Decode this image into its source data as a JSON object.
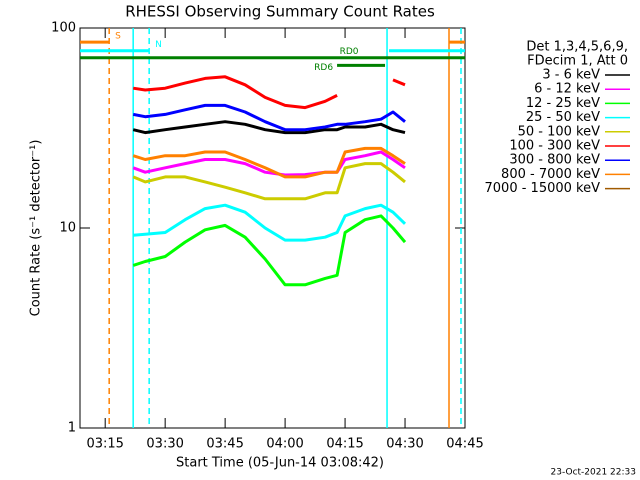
{
  "chart_data": {
    "type": "line",
    "title": "RHESSI Observing Summary Count Rates",
    "xlabel": "Start Time (05-Jun-14 03:08:42)",
    "ylabel": "Count Rate (s⁻¹ detector⁻¹)",
    "legend_header": [
      "Det 1,3,4,5,6,9,",
      "FDecim 1, Att 0"
    ],
    "footer": "23-Oct-2021 22:33",
    "log_y": true,
    "xlim": [
      "03:08:42",
      "04:45"
    ],
    "xticks": [
      "03:15",
      "03:30",
      "03:45",
      "04:00",
      "04:15",
      "04:30",
      "04:45"
    ],
    "ylim": [
      1,
      100
    ],
    "yticks": [
      1,
      10,
      100
    ],
    "x": [
      "03:22",
      "03:25",
      "03:30",
      "03:35",
      "03:40",
      "03:45",
      "03:50",
      "03:55",
      "04:00",
      "04:05",
      "04:10",
      "04:13",
      "04:15",
      "04:20",
      "04:24",
      "04:27",
      "04:30"
    ],
    "series": [
      {
        "name": "3 - 6 keV",
        "color": "#000000",
        "values": [
          31,
          30,
          31,
          32,
          33,
          34,
          33,
          31,
          30,
          30,
          31,
          31,
          32,
          32,
          33,
          31,
          30
        ]
      },
      {
        "name": "6 - 12 keV",
        "color": "#ff00ff",
        "values": [
          20,
          19,
          20,
          21,
          22,
          22,
          21,
          19,
          18.4,
          18.5,
          19,
          19,
          22,
          23,
          24,
          22,
          20
        ]
      },
      {
        "name": "12 - 25 keV",
        "color": "#00ff00",
        "values": [
          6.5,
          6.8,
          7.2,
          8.5,
          9.8,
          10.3,
          9,
          7,
          5.2,
          5.2,
          5.6,
          5.8,
          9.5,
          11,
          11.5,
          10,
          8.5
        ]
      },
      {
        "name": "25 - 50 keV",
        "color": "#00ffff",
        "values": [
          9.2,
          9.3,
          9.5,
          11,
          12.5,
          13,
          12,
          10,
          8.7,
          8.7,
          9,
          9.5,
          11.5,
          12.5,
          13,
          12,
          10.5
        ]
      },
      {
        "name": "50 - 100 keV",
        "color": "#cccc00",
        "values": [
          18,
          17,
          18,
          18,
          17,
          16,
          15,
          14,
          14,
          14,
          15,
          15,
          20,
          21,
          21,
          19,
          17
        ]
      },
      {
        "name": "100 - 300 keV",
        "color": "#ff0000",
        "values": [
          50,
          49,
          50,
          53,
          56,
          57,
          52,
          45,
          41,
          40,
          43,
          46,
          null,
          null,
          null,
          55,
          52
        ]
      },
      {
        "name": "300 - 800 keV",
        "color": "#0000ff",
        "values": [
          37,
          36,
          37,
          39,
          41,
          41,
          38,
          34,
          31,
          31,
          32,
          33,
          33,
          34,
          35,
          38,
          34
        ]
      },
      {
        "name": "800 - 7000 keV",
        "color": "#ff8000",
        "values": [
          23,
          22,
          23,
          23,
          24,
          24,
          22,
          20,
          18,
          18,
          19,
          19,
          24,
          25,
          25,
          23,
          21
        ]
      },
      {
        "name": "7000 - 15000 keV",
        "color": "#a05a00",
        "values": [
          null,
          null,
          null,
          null,
          null,
          null,
          null,
          null,
          null,
          null,
          null,
          null,
          null,
          null,
          null,
          null,
          null
        ]
      }
    ],
    "state_bars": [
      {
        "text": "S",
        "x": [
          "03:08:42",
          "03:16"
        ],
        "y": 85,
        "color": "#ff8000"
      },
      {
        "x": [
          "04:41",
          "04:45"
        ],
        "y": 85,
        "color": "#ff8000"
      },
      {
        "text": "N",
        "x": [
          "03:08:42",
          "03:26"
        ],
        "y": 77,
        "color": "#00ffff"
      },
      {
        "x": [
          "04:26",
          "04:45"
        ],
        "y": 77,
        "color": "#00ffff"
      },
      {
        "text": "RD0",
        "x": [
          "03:08:42",
          "04:45"
        ],
        "y": 71,
        "color": "#008000"
      },
      {
        "text": "RD6",
        "x": [
          "04:13",
          "04:25"
        ],
        "y": 65,
        "color": "#008000"
      }
    ],
    "markers": [
      {
        "x": "03:16",
        "color": "#ff8000",
        "dashed": true
      },
      {
        "x": "03:22",
        "color": "#00ffff",
        "dashed": false
      },
      {
        "x": "03:26",
        "color": "#00ffff",
        "dashed": true
      },
      {
        "x": "04:25:30",
        "color": "#00ffff",
        "dashed": false
      },
      {
        "x": "04:41",
        "color": "#ff8000",
        "dashed": false
      },
      {
        "x": "04:44",
        "color": "#00ffff",
        "dashed": true
      }
    ]
  }
}
